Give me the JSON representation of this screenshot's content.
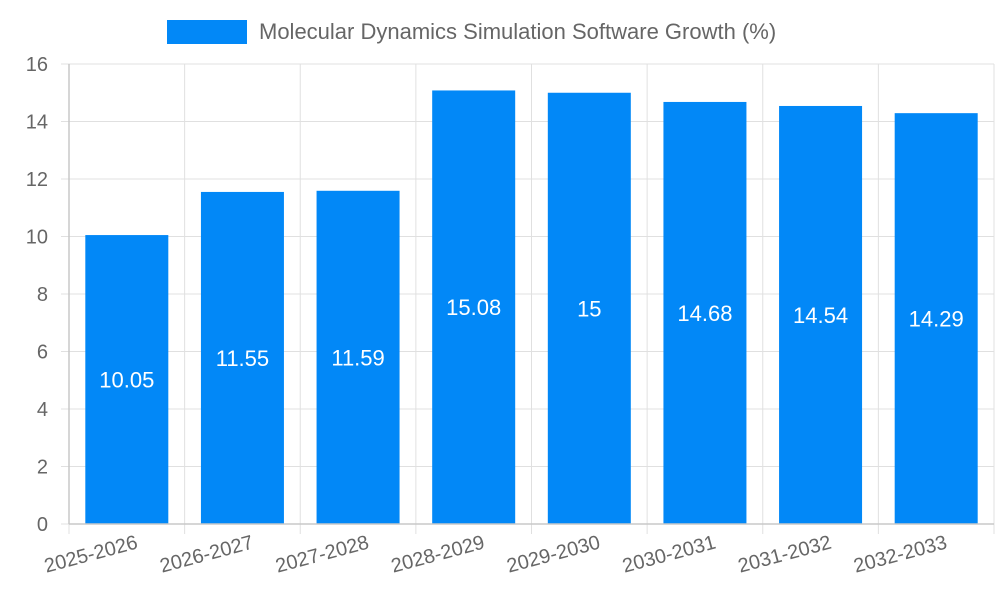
{
  "chart_data": {
    "type": "bar",
    "categories": [
      "2025-2026",
      "2026-2027",
      "2027-2028",
      "2028-2029",
      "2029-2030",
      "2030-2031",
      "2031-2032",
      "2032-2033"
    ],
    "series": [
      {
        "name": "Molecular Dynamics Simulation Software Growth (%)",
        "values": [
          10.05,
          11.55,
          11.59,
          15.08,
          15,
          14.68,
          14.54,
          14.29
        ],
        "color": "#0288f7"
      }
    ],
    "data_labels": [
      "10.05",
      "11.55",
      "11.59",
      "15.08",
      "15",
      "14.68",
      "14.54",
      "14.29"
    ],
    "yticks": [
      "0",
      "2",
      "4",
      "6",
      "8",
      "10",
      "12",
      "14",
      "16"
    ],
    "ylim": [
      0,
      16
    ],
    "grid": true,
    "legend_position": "top-center"
  }
}
